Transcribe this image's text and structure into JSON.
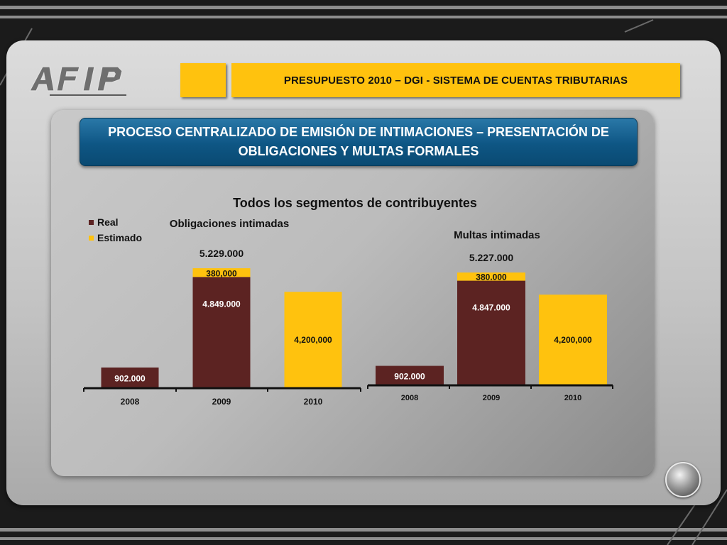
{
  "header": {
    "title": "PRESUPUESTO 2010 – DGI - SISTEMA DE CUENTAS TRIBUTARIAS"
  },
  "banner": {
    "line1": "PROCESO CENTRALIZADO DE EMISIÓN DE INTIMACIONES – PRESENTACIÓN DE",
    "line2": "OBLIGACIONES  Y MULTAS FORMALES"
  },
  "logo": {
    "name": "afip-logo-icon"
  },
  "colors": {
    "real": "#5c2322",
    "estimado": "#ffc20e",
    "header": "#ffc20e",
    "banner": "#0e5684"
  },
  "chart_data": [
    {
      "type": "bar",
      "stacked": true,
      "title": "Todos los segmentos de contribuyentes",
      "subtitle": "Obligaciones intimadas",
      "legend": {
        "position": "top-left",
        "entries": [
          "Real",
          "Estimado"
        ]
      },
      "categories": [
        "2008",
        "2009",
        "2010"
      ],
      "series": [
        {
          "name": "Real",
          "values": [
            902000,
            4849000,
            0
          ],
          "labels": [
            "902.000",
            "4.849.000",
            ""
          ]
        },
        {
          "name": "Estimado",
          "values": [
            0,
            380000,
            4200000
          ],
          "labels": [
            "",
            "380,000",
            "4,200,000"
          ]
        }
      ],
      "total_labels": [
        "",
        "5.229.000",
        ""
      ]
    },
    {
      "type": "bar",
      "stacked": true,
      "subtitle": "Multas intimadas",
      "categories": [
        "2008",
        "2009",
        "2010"
      ],
      "series": [
        {
          "name": "Real",
          "values": [
            902000,
            4847000,
            0
          ],
          "labels": [
            "902.000",
            "4.847.000",
            ""
          ]
        },
        {
          "name": "Estimado",
          "values": [
            0,
            380000,
            4200000
          ],
          "labels": [
            "",
            "380.000",
            "4,200,000"
          ]
        }
      ],
      "total_labels": [
        "",
        "5.227.000",
        ""
      ]
    }
  ]
}
